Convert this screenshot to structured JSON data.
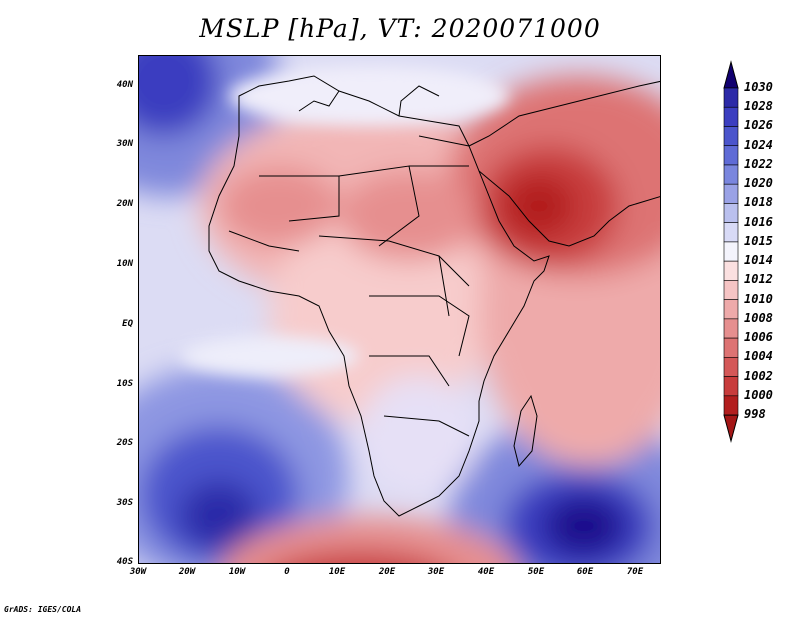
{
  "title": "MSLP [hPa], VT: 2020071000",
  "credit": "GrADS: IGES/COLA",
  "y_axis_labels": [
    "40N",
    "30N",
    "20N",
    "10N",
    "EQ",
    "10S",
    "20S",
    "30S",
    "40S"
  ],
  "x_axis_labels": [
    "30W",
    "20W",
    "10W",
    "0",
    "10E",
    "20E",
    "30E",
    "40E",
    "50E",
    "60E",
    "70E"
  ],
  "map_extent": {
    "lon_min": -30,
    "lon_max": 75,
    "lat_min": -40,
    "lat_max": 45
  },
  "colorbar": {
    "labels": [
      "1030",
      "1028",
      "1026",
      "1024",
      "1022",
      "1020",
      "1018",
      "1016",
      "1015",
      "1014",
      "1012",
      "1010",
      "1008",
      "1006",
      "1004",
      "1002",
      "1000",
      "998"
    ],
    "colors": [
      "#1a0c8c",
      "#2c2aa8",
      "#3b3ec0",
      "#4b55cc",
      "#5f6bd6",
      "#7a86de",
      "#9aa2e6",
      "#bac0ee",
      "#d8daf6",
      "#f4f4fc",
      "#fbe0e0",
      "#f6c4c4",
      "#eeaaaa",
      "#e68f8f",
      "#dd7373",
      "#d45858",
      "#c83c3c",
      "#b21e1e"
    ],
    "top_arrow_color": "#110070",
    "bottom_arrow_color": "#a41616"
  }
}
